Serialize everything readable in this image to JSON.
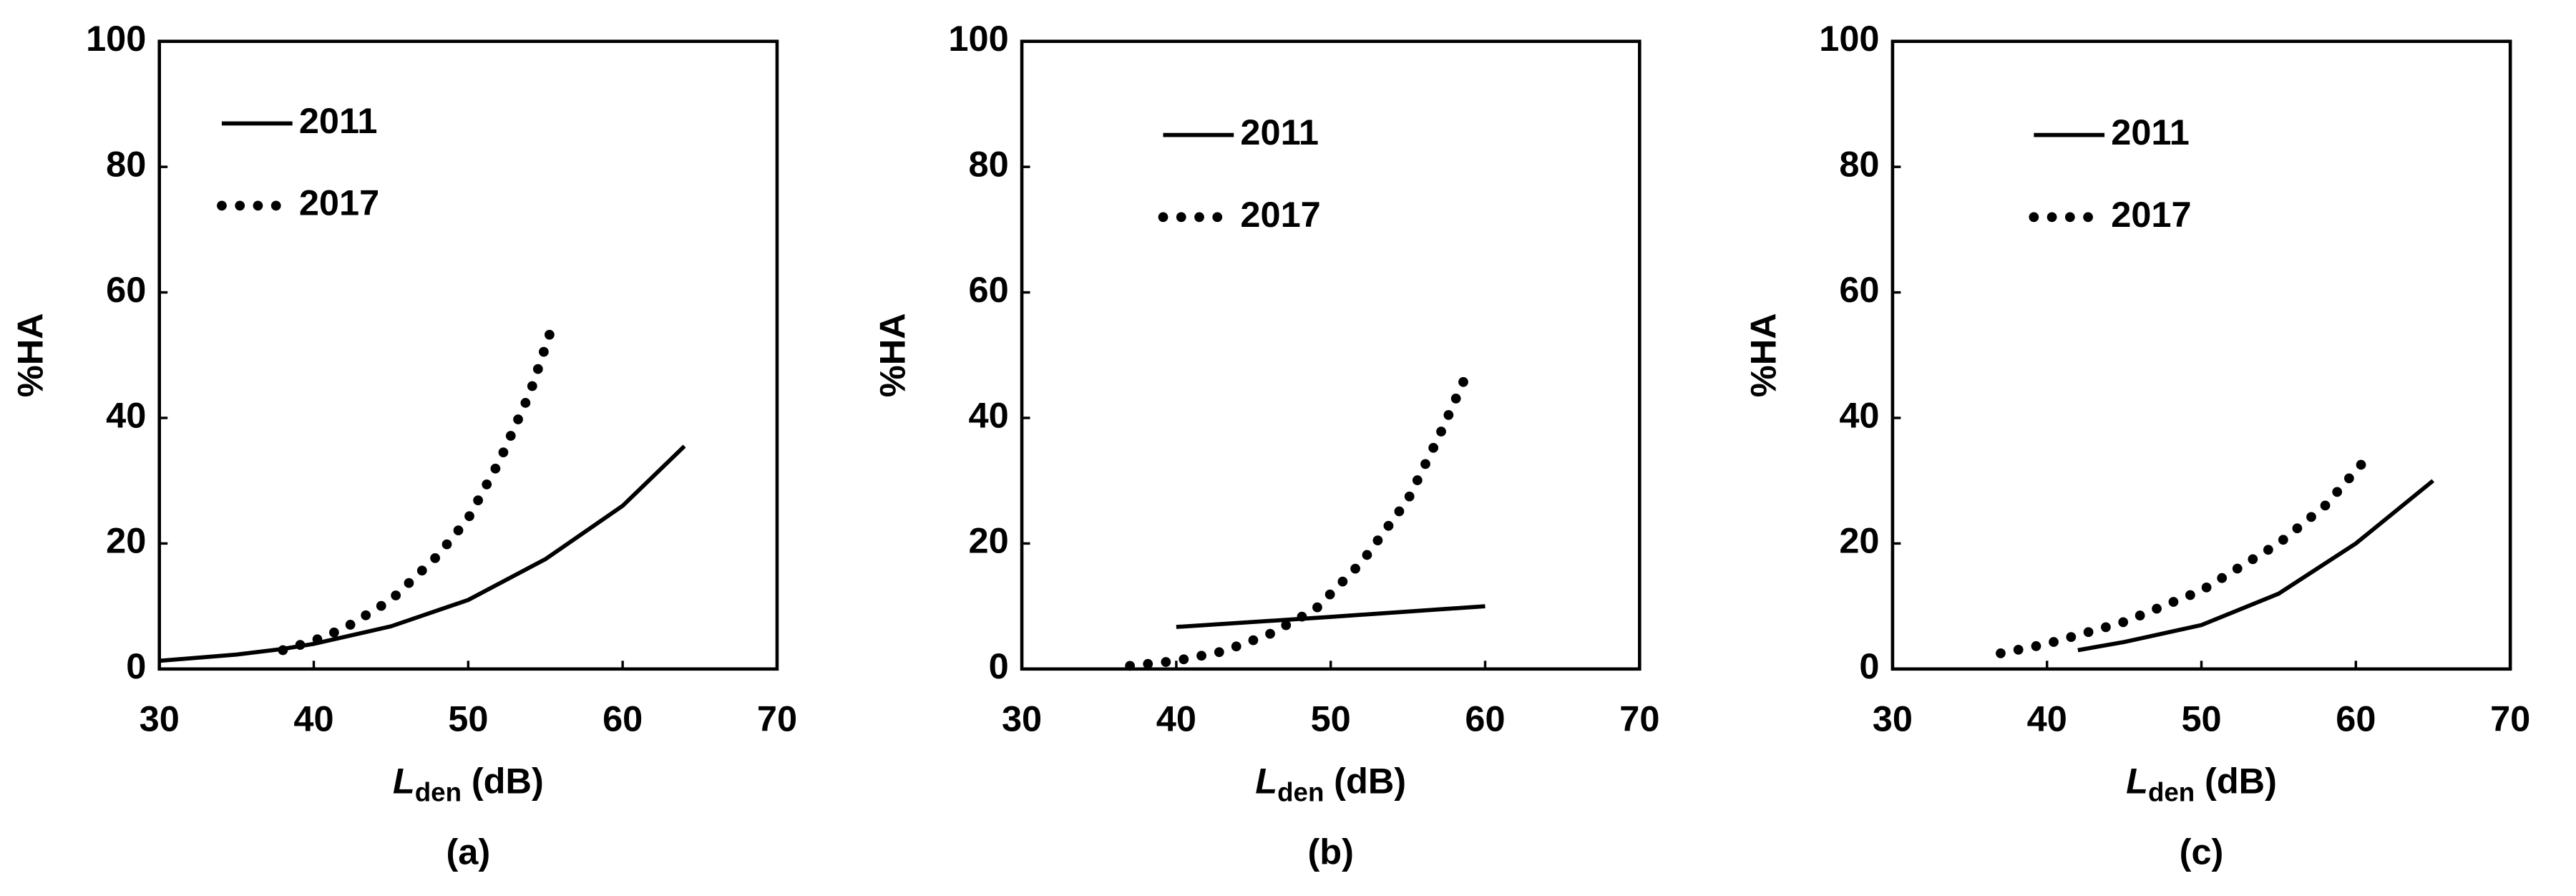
{
  "chart_data": [
    {
      "type": "line",
      "panel_label": "(a)",
      "ylabel": "%HA",
      "xlabel": {
        "main": "L",
        "subscript": "den",
        "rest": "(dB)"
      },
      "xlim": [
        30,
        70
      ],
      "xticks": [
        30,
        40,
        50,
        60,
        70
      ],
      "ylim": [
        0,
        100
      ],
      "yticks": [
        0,
        20,
        40,
        60,
        80,
        100
      ],
      "legend": "upper left",
      "series": [
        {
          "name": "2011",
          "color": "#000000",
          "style": "solid",
          "x": [
            30,
            35,
            38,
            40,
            45,
            50,
            55,
            60,
            64
          ],
          "values": [
            1.3,
            2.3,
            3.2,
            4.0,
            6.8,
            11,
            17.5,
            26,
            35.5
          ]
        },
        {
          "name": "2017",
          "color": "#000000",
          "style": "dotted",
          "x": [
            38,
            40,
            42,
            45,
            48,
            50,
            52,
            54,
            55.5
          ],
          "values": [
            3,
            4.5,
            6.5,
            11,
            18,
            24,
            33,
            44,
            55
          ]
        }
      ]
    },
    {
      "type": "line",
      "panel_label": "(b)",
      "ylabel": "%HA",
      "xlabel": {
        "main": "L",
        "subscript": "den",
        "rest": "(dB)"
      },
      "xlim": [
        30,
        70
      ],
      "xticks": [
        30,
        40,
        50,
        60,
        70
      ],
      "ylim": [
        0,
        100
      ],
      "yticks": [
        0,
        20,
        40,
        60,
        80,
        100
      ],
      "legend": "upper left",
      "series": [
        {
          "name": "2011",
          "color": "#000000",
          "style": "solid",
          "x": [
            40,
            50,
            60
          ],
          "values": [
            6.7,
            8.3,
            10
          ]
        },
        {
          "name": "2017",
          "color": "#000000",
          "style": "dotted",
          "x": [
            37,
            40,
            43,
            46,
            49,
            52,
            55,
            57,
            59
          ],
          "values": [
            0.5,
            1.3,
            2.8,
            5.5,
            9.5,
            17,
            27,
            37,
            48
          ]
        }
      ]
    },
    {
      "type": "line",
      "panel_label": "(c)",
      "ylabel": "%HA",
      "xlabel": {
        "main": "L",
        "subscript": "den",
        "rest": "(dB)"
      },
      "xlim": [
        30,
        70
      ],
      "xticks": [
        30,
        40,
        50,
        60,
        70
      ],
      "ylim": [
        0,
        100
      ],
      "yticks": [
        0,
        20,
        40,
        60,
        80,
        100
      ],
      "legend": "upper left",
      "series": [
        {
          "name": "2011",
          "color": "#000000",
          "style": "solid",
          "x": [
            42,
            45,
            50,
            55,
            60,
            65
          ],
          "values": [
            3,
            4.3,
            7,
            12,
            20,
            30
          ]
        },
        {
          "name": "2017",
          "color": "#000000",
          "style": "dotted",
          "x": [
            37,
            40,
            45,
            50,
            55,
            58,
            60.5
          ],
          "values": [
            2.5,
            4,
            7.5,
            12.5,
            20,
            26,
            33
          ]
        }
      ]
    }
  ]
}
